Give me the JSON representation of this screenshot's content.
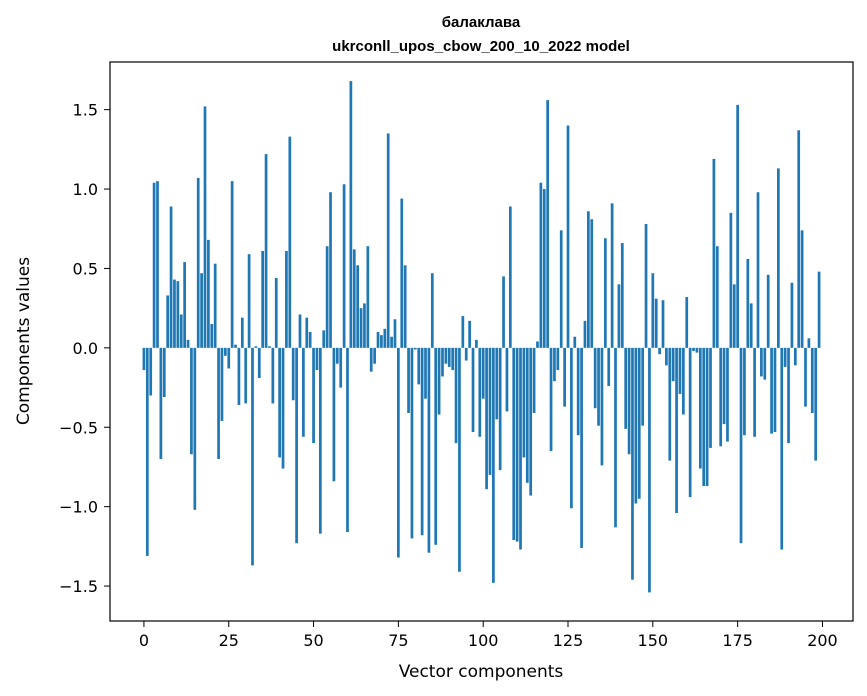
{
  "chart_data": {
    "type": "bar",
    "title": "балаклава",
    "subtitle": "ukrconll_upos_cbow_200_10_2022 model",
    "xlabel": "Vector components",
    "ylabel": "Components values",
    "xlim": [
      -10,
      209
    ],
    "ylim": [
      -1.72,
      1.8
    ],
    "xticks": [
      0,
      25,
      50,
      75,
      100,
      125,
      150,
      175,
      200
    ],
    "yticks": [
      -1.5,
      -1.0,
      -0.5,
      0.0,
      0.5,
      1.0,
      1.5
    ],
    "ytick_labels": [
      "−1.5",
      "−1.0",
      "−0.5",
      "0.0",
      "0.5",
      "1.0",
      "1.5"
    ],
    "bar_color": "#1f77b4",
    "grid": false,
    "x": [
      0,
      1,
      2,
      3,
      4,
      5,
      6,
      7,
      8,
      9,
      10,
      11,
      12,
      13,
      14,
      15,
      16,
      17,
      18,
      19,
      20,
      21,
      22,
      23,
      24,
      25,
      26,
      27,
      28,
      29,
      30,
      31,
      32,
      33,
      34,
      35,
      36,
      37,
      38,
      39,
      40,
      41,
      42,
      43,
      44,
      45,
      46,
      47,
      48,
      49,
      50,
      51,
      52,
      53,
      54,
      55,
      56,
      57,
      58,
      59,
      60,
      61,
      62,
      63,
      64,
      65,
      66,
      67,
      68,
      69,
      70,
      71,
      72,
      73,
      74,
      75,
      76,
      77,
      78,
      79,
      80,
      81,
      82,
      83,
      84,
      85,
      86,
      87,
      88,
      89,
      90,
      91,
      92,
      93,
      94,
      95,
      96,
      97,
      98,
      99,
      100,
      101,
      102,
      103,
      104,
      105,
      106,
      107,
      108,
      109,
      110,
      111,
      112,
      113,
      114,
      115,
      116,
      117,
      118,
      119,
      120,
      121,
      122,
      123,
      124,
      125,
      126,
      127,
      128,
      129,
      130,
      131,
      132,
      133,
      134,
      135,
      136,
      137,
      138,
      139,
      140,
      141,
      142,
      143,
      144,
      145,
      146,
      147,
      148,
      149,
      150,
      151,
      152,
      153,
      154,
      155,
      156,
      157,
      158,
      159,
      160,
      161,
      162,
      163,
      164,
      165,
      166,
      167,
      168,
      169,
      170,
      171,
      172,
      173,
      174,
      175,
      176,
      177,
      178,
      179,
      180,
      181,
      182,
      183,
      184,
      185,
      186,
      187,
      188,
      189,
      190,
      191,
      192,
      193,
      194,
      195,
      196,
      197,
      198,
      199
    ],
    "values": [
      -0.14,
      -1.31,
      -0.3,
      1.04,
      1.05,
      -0.7,
      -0.31,
      0.33,
      0.89,
      0.43,
      0.42,
      0.21,
      0.54,
      0.05,
      -0.67,
      -1.02,
      1.07,
      0.47,
      1.52,
      0.68,
      0.15,
      0.53,
      -0.7,
      -0.46,
      -0.05,
      -0.13,
      1.05,
      0.02,
      -0.36,
      0.19,
      -0.35,
      0.59,
      -1.37,
      0.01,
      -0.19,
      0.61,
      1.22,
      0.01,
      -0.35,
      0.44,
      -0.69,
      -0.76,
      0.61,
      1.33,
      -0.33,
      -1.23,
      0.21,
      -0.56,
      0.19,
      0.1,
      -0.6,
      -0.14,
      -1.17,
      0.11,
      0.64,
      0.98,
      -0.84,
      -0.1,
      -0.25,
      1.03,
      -1.16,
      1.68,
      0.62,
      0.52,
      0.25,
      0.28,
      0.64,
      -0.15,
      -0.1,
      0.1,
      0.08,
      0.12,
      1.35,
      0.07,
      0.18,
      -1.32,
      0.94,
      0.52,
      -0.41,
      -1.2,
      -0.01,
      -0.23,
      -1.18,
      -0.32,
      -1.29,
      0.47,
      -1.24,
      -0.42,
      -0.18,
      -0.1,
      -0.12,
      -0.14,
      -0.6,
      -1.41,
      0.2,
      -0.08,
      0.17,
      -0.53,
      0.05,
      -0.56,
      -0.32,
      -0.89,
      -0.8,
      -1.48,
      -0.45,
      -0.77,
      0.45,
      -0.4,
      0.89,
      -1.21,
      -1.22,
      -1.27,
      -0.69,
      -0.85,
      -0.93,
      -0.41,
      0.04,
      1.04,
      1.0,
      1.56,
      -0.65,
      -0.21,
      -0.14,
      0.74,
      -0.37,
      1.4,
      -1.01,
      0.07,
      -0.55,
      -1.26,
      0.17,
      0.86,
      0.81,
      -0.38,
      -0.49,
      -0.74,
      0.69,
      -0.24,
      0.91,
      -1.13,
      0.4,
      0.66,
      -0.51,
      -0.67,
      -1.46,
      -0.98,
      -0.95,
      -0.49,
      0.78,
      -1.54,
      0.47,
      0.31,
      -0.04,
      0.3,
      -0.11,
      -0.71,
      -0.21,
      -1.04,
      -0.29,
      -0.42,
      0.32,
      -0.94,
      -0.02,
      -0.03,
      -0.76,
      -0.87,
      -0.87,
      -0.63,
      1.19,
      0.64,
      -0.62,
      -0.48,
      -0.59,
      0.85,
      0.4,
      1.53,
      -1.23,
      -0.55,
      0.56,
      0.28,
      -0.56,
      0.98,
      -0.18,
      -0.2,
      0.46,
      -0.54,
      -0.53,
      1.13,
      -1.27,
      -0.12,
      -0.6,
      0.41,
      -0.11,
      1.37,
      0.74,
      -0.37,
      0.06,
      -0.41,
      -0.71,
      0.48
    ]
  }
}
